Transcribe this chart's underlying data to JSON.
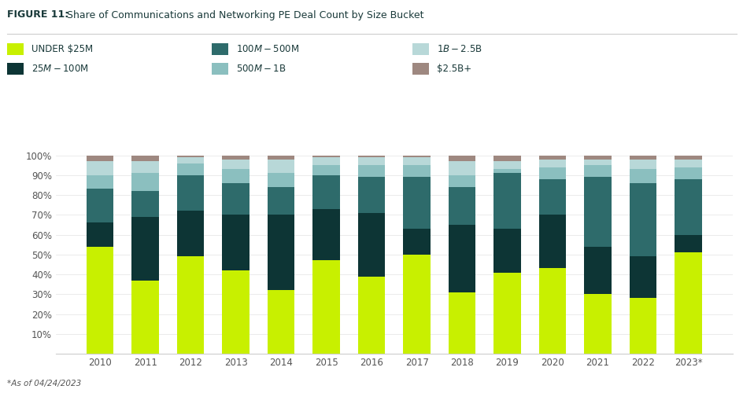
{
  "years": [
    "2010",
    "2011",
    "2012",
    "2013",
    "2014",
    "2015",
    "2016",
    "2017",
    "2018",
    "2019",
    "2020",
    "2021",
    "2022",
    "2023*"
  ],
  "series": {
    "UNDER $25M": [
      0.54,
      0.37,
      0.49,
      0.42,
      0.32,
      0.47,
      0.39,
      0.5,
      0.31,
      0.41,
      0.43,
      0.3,
      0.28,
      0.51
    ],
    "$25M-$100M": [
      0.12,
      0.32,
      0.23,
      0.28,
      0.38,
      0.26,
      0.32,
      0.13,
      0.34,
      0.22,
      0.27,
      0.24,
      0.21,
      0.09
    ],
    "$100M-$500M": [
      0.17,
      0.13,
      0.18,
      0.16,
      0.14,
      0.17,
      0.18,
      0.26,
      0.19,
      0.28,
      0.18,
      0.35,
      0.37,
      0.28
    ],
    "$500M-$1B": [
      0.07,
      0.09,
      0.06,
      0.07,
      0.07,
      0.05,
      0.06,
      0.06,
      0.06,
      0.02,
      0.06,
      0.06,
      0.07,
      0.06
    ],
    "$1B-$2.5B": [
      0.07,
      0.06,
      0.03,
      0.05,
      0.07,
      0.04,
      0.04,
      0.04,
      0.07,
      0.04,
      0.04,
      0.03,
      0.05,
      0.04
    ],
    "$2.5B+": [
      0.03,
      0.03,
      0.01,
      0.02,
      0.02,
      0.01,
      0.01,
      0.01,
      0.03,
      0.03,
      0.02,
      0.02,
      0.02,
      0.02
    ]
  },
  "colors": {
    "UNDER $25M": "#c8f000",
    "$25M-$100M": "#0d3535",
    "$100M-$500M": "#2e6b6b",
    "$500M-$1B": "#8bbfbf",
    "$1B-$2.5B": "#b8d8d8",
    "$2.5B+": "#9e8880"
  },
  "title_bold": "FIGURE 11:",
  "title_normal": "  Share of Communications and Networking PE Deal Count by Size Bucket",
  "footnote": "*As of 04/24/2023",
  "ytick_labels": [
    "",
    "10%",
    "20%",
    "30%",
    "40%",
    "50%",
    "60%",
    "70%",
    "80%",
    "90%",
    "100%"
  ],
  "background_color": "#ffffff",
  "title_color": "#1a3a3a",
  "legend_row1": [
    "UNDER $25M",
    "$100M-$500M",
    "$1B-$2.5B"
  ],
  "legend_row2": [
    "$25M-$100M",
    "$500M-$1B",
    "$2.5B+"
  ]
}
